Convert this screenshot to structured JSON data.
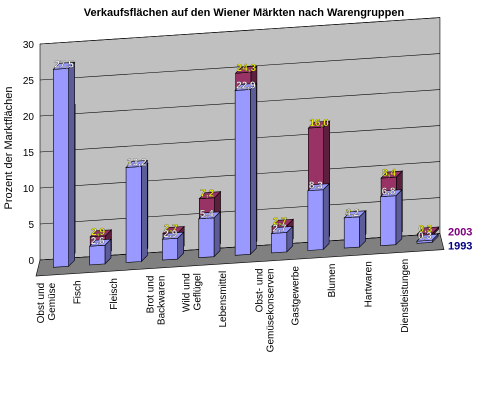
{
  "chart_data": {
    "type": "bar",
    "title": "Verkaufsflächen auf den Wiener Märkten nach Warengruppen",
    "ylabel": "Prozent der Marktflächen",
    "xlabel": "",
    "ylim": [
      0,
      30
    ],
    "yticks": [
      0,
      5,
      10,
      15,
      20,
      25,
      30
    ],
    "grid": true,
    "style": "3d-columns",
    "categories": [
      "Obst und Gemüse",
      "Fisch",
      "Fleisch",
      "Brot und Backwaren",
      "Wild und Geflügel",
      "Lebensmittel",
      "Obst- und Gemüsekonserven",
      "Gastgewerbe",
      "Blumen",
      "Hartwaren",
      "Dienstleistungen"
    ],
    "series": [
      {
        "name": "1993",
        "color": "#9999ff",
        "label_color": "#ffffff",
        "values": [
          27.5,
          2.6,
          13.2,
          2.9,
          5.4,
          22.9,
          2.7,
          8.3,
          4.2,
          6.8,
          0.3
        ],
        "labels": [
          "27,5",
          "2,6",
          "13,2",
          "2,9",
          "5,4",
          "22,9",
          "2,7",
          "8,3",
          "4,2",
          "6,8",
          "0,3"
        ]
      },
      {
        "name": "2003",
        "color": "#993366",
        "label_color": "#ffff00",
        "values": [
          20.6,
          2.9,
          11.8,
          2.7,
          7.2,
          24.3,
          2.7,
          16.0,
          3.2,
          8.4,
          0.3
        ],
        "labels": [
          "20,6",
          "2,9",
          "11,8",
          "2,7",
          "7,2",
          "24,3",
          "2,7",
          "16,0",
          "3,2",
          "8,4",
          "0,3"
        ]
      }
    ],
    "colors": {
      "wall": "#c0c0c0",
      "floor": "#808080",
      "legend_1993": "#000080",
      "legend_2003": "#800080"
    }
  }
}
